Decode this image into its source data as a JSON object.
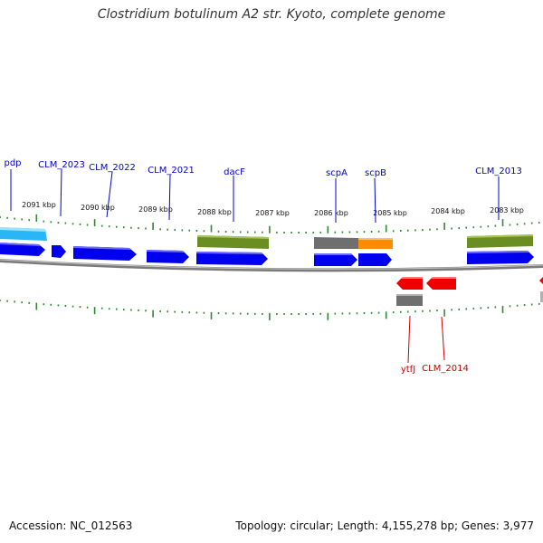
{
  "title": "Clostridium botulinum A2 str. Kyoto, complete genome",
  "footer": {
    "accession": "Accession: NC_012563",
    "summary": "Topology: circular; Length: 4,155,278 bp; Genes: 3,977"
  },
  "colors": {
    "backbone": "#8a8a8a",
    "tick": "#2e8b2e",
    "cds_forward": "#0000ee",
    "cds_reverse": "#ee0000",
    "label_forward": "#0000cc",
    "label_reverse": "#cc0000",
    "olive_feature": "#6b8e23",
    "gray_feature": "#707070",
    "orange_feature": "#ff8c00",
    "cyan_feature": "#29b6f6"
  },
  "scale_labels": [
    "2091 kbp",
    "2090 kbp",
    "2089 kbp",
    "2088 kbp",
    "2087 kbp",
    "2086 kbp",
    "2085 kbp",
    "2084 kbp",
    "2083 kbp"
  ],
  "forward_gene_labels": [
    "pdp",
    "CLM_2023",
    "CLM_2022",
    "CLM_2021",
    "dacF",
    "scpA",
    "scpB",
    "CLM_2013"
  ],
  "reverse_gene_labels": [
    "ytfJ",
    "CLM_2014"
  ]
}
